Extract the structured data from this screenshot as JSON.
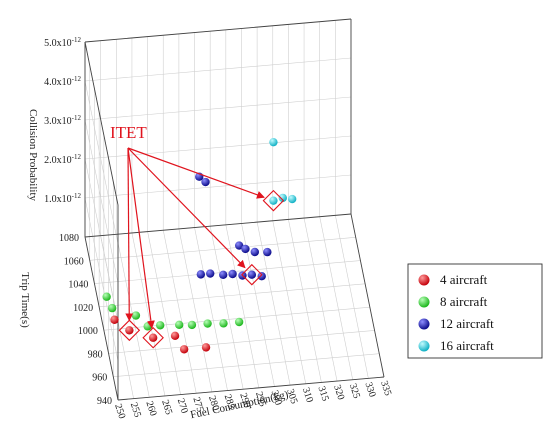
{
  "chart_data": {
    "type": "scatter",
    "projection": "3d",
    "xlabel": "Fuel Consumption(kg)",
    "ylabel": "Trip Time(s)",
    "zlabel": "Collision Probability",
    "xlim": [
      250,
      335
    ],
    "ylim": [
      940,
      1080
    ],
    "zlim": [
      0,
      5e-12
    ],
    "x_ticks": [
      "250",
      "255",
      "260",
      "265",
      "270",
      "275",
      "280",
      "285",
      "290",
      "295",
      "300",
      "305",
      "310",
      "315",
      "320",
      "325",
      "330",
      "335"
    ],
    "y_ticks": [
      "940",
      "960",
      "980",
      "1000",
      "1020",
      "1040",
      "1060",
      "1080"
    ],
    "z_ticks": [
      "1.0x10-12",
      "2.0x10-12",
      "3.0x10-12",
      "4.0x10-12",
      "5.0x10-12"
    ],
    "z_tick_values": [
      1e-12,
      2e-12,
      3e-12,
      4e-12,
      5e-12
    ],
    "series": [
      {
        "name": "4 aircraft",
        "color": "#e8141e",
        "points": [
          {
            "x": 254,
            "y": 1008,
            "z": 0
          },
          {
            "x": 258,
            "y": 998,
            "z": 0
          },
          {
            "x": 265,
            "y": 990,
            "z": 0
          },
          {
            "x": 272,
            "y": 990,
            "z": 0
          },
          {
            "x": 274,
            "y": 978,
            "z": 0
          },
          {
            "x": 281,
            "y": 978,
            "z": 0
          }
        ]
      },
      {
        "name": "8 aircraft",
        "color": "#3ddc3d",
        "points": [
          {
            "x": 253,
            "y": 1028,
            "z": 0
          },
          {
            "x": 254,
            "y": 1018,
            "z": 0
          },
          {
            "x": 261,
            "y": 1010,
            "z": 0
          },
          {
            "x": 264,
            "y": 1000,
            "z": 0
          },
          {
            "x": 268,
            "y": 1000,
            "z": 0
          },
          {
            "x": 274,
            "y": 999,
            "z": 0
          },
          {
            "x": 278,
            "y": 998,
            "z": 0
          },
          {
            "x": 283,
            "y": 998,
            "z": 0
          },
          {
            "x": 288,
            "y": 997,
            "z": 0
          },
          {
            "x": 293,
            "y": 997,
            "z": 0
          }
        ]
      },
      {
        "name": "12 aircraft",
        "color": "#1c1ec8",
        "points": [
          {
            "x": 284,
            "y": 1040,
            "z": 0
          },
          {
            "x": 287,
            "y": 1040,
            "z": 0
          },
          {
            "x": 291,
            "y": 1038,
            "z": 0
          },
          {
            "x": 294,
            "y": 1038,
            "z": 0
          },
          {
            "x": 297,
            "y": 1036,
            "z": 0
          },
          {
            "x": 300,
            "y": 1036,
            "z": 0
          },
          {
            "x": 303,
            "y": 1034,
            "z": 0
          },
          {
            "x": 297,
            "y": 1050,
            "z": 3.5e-13
          },
          {
            "x": 299,
            "y": 1050,
            "z": 2.5e-13
          },
          {
            "x": 302,
            "y": 1050,
            "z": 1.5e-13
          },
          {
            "x": 306,
            "y": 1050,
            "z": 1.2e-13
          },
          {
            "x": 285,
            "y": 1060,
            "z": 1.9e-12
          },
          {
            "x": 287,
            "y": 1060,
            "z": 1.75e-12
          }
        ]
      },
      {
        "name": "16 aircraft",
        "color": "#28d4e6",
        "points": [
          {
            "x": 309,
            "y": 1064,
            "z": 1e-12
          },
          {
            "x": 312,
            "y": 1064,
            "z": 1.05e-12
          },
          {
            "x": 315,
            "y": 1064,
            "z": 1e-12
          },
          {
            "x": 309,
            "y": 1064,
            "z": 2.5e-12
          }
        ]
      }
    ],
    "annotation": {
      "text": "ITET",
      "color": "#e0141e",
      "targets": [
        {
          "x": 258,
          "y": 998,
          "z": 0
        },
        {
          "x": 265,
          "y": 990,
          "z": 0
        },
        {
          "x": 300,
          "y": 1036,
          "z": 0
        },
        {
          "x": 309,
          "y": 1064,
          "z": 1e-12
        }
      ]
    },
    "legend": {
      "position": "right",
      "marker": "sphere"
    },
    "grid": true
  }
}
